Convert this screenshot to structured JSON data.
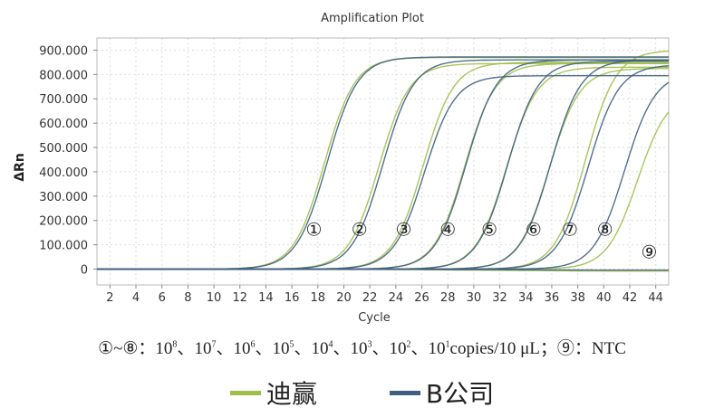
{
  "chart_data": {
    "type": "line",
    "title": "Amplification Plot",
    "xlabel": "Cycle",
    "ylabel": "ΔRn",
    "xlim": [
      1,
      45
    ],
    "ylim": [
      -65000,
      950000
    ],
    "x_ticks": [
      2,
      4,
      6,
      8,
      10,
      12,
      14,
      16,
      18,
      20,
      22,
      24,
      26,
      28,
      30,
      32,
      34,
      36,
      38,
      40,
      42,
      44
    ],
    "y_ticks": [
      0,
      100000,
      200000,
      300000,
      400000,
      500000,
      600000,
      700000,
      800000,
      900000
    ],
    "y_tick_labels": [
      "0",
      "100.000",
      "200.000",
      "300.000",
      "400.000",
      "500.000",
      "600.000",
      "700.000",
      "800.000",
      "900.000"
    ],
    "grid": true,
    "legend_placement": "bottom",
    "series": [
      {
        "name": "迪赢",
        "color": "#9fbf4a",
        "curves": [
          {
            "label": "①",
            "ct": 18.5,
            "plateau": 870000
          },
          {
            "label": "②",
            "ct": 22.7,
            "plateau": 845000
          },
          {
            "label": "③",
            "ct": 26.1,
            "plateau": 850000
          },
          {
            "label": "④",
            "ct": 29.3,
            "plateau": 845000
          },
          {
            "label": "⑤",
            "ct": 32.5,
            "plateau": 830000
          },
          {
            "label": "⑥",
            "ct": 35.8,
            "plateau": 825000
          },
          {
            "label": "⑦",
            "ct": 38.6,
            "plateau": 900000
          },
          {
            "label": "⑧",
            "ct": 42.6,
            "plateau": 730000
          },
          {
            "label": "⑨",
            "ct": null,
            "plateau": -8000
          }
        ]
      },
      {
        "name": "B公司",
        "color": "#3f5f82",
        "curves": [
          {
            "label": "①",
            "ct": 18.7,
            "plateau": 872000
          },
          {
            "label": "②",
            "ct": 23.0,
            "plateau": 860000
          },
          {
            "label": "③",
            "ct": 26.2,
            "plateau": 795000
          },
          {
            "label": "④",
            "ct": 29.4,
            "plateau": 860000
          },
          {
            "label": "⑤",
            "ct": 32.6,
            "plateau": 855000
          },
          {
            "label": "⑥",
            "ct": 35.9,
            "plateau": 860000
          },
          {
            "label": "⑦",
            "ct": 38.8,
            "plateau": 840000
          },
          {
            "label": "⑧",
            "ct": 41.6,
            "plateau": 810000
          },
          {
            "label": "⑨",
            "ct": null,
            "plateau": -4000
          }
        ]
      }
    ],
    "annotations": [
      {
        "text": "①",
        "x": 17.7,
        "y": 163000
      },
      {
        "text": "②",
        "x": 21.2,
        "y": 163000
      },
      {
        "text": "③",
        "x": 24.6,
        "y": 163000
      },
      {
        "text": "④",
        "x": 28.0,
        "y": 163000
      },
      {
        "text": "⑤",
        "x": 31.2,
        "y": 163000
      },
      {
        "text": "⑥",
        "x": 34.6,
        "y": 163000
      },
      {
        "text": "⑦",
        "x": 37.4,
        "y": 163000
      },
      {
        "text": "⑧",
        "x": 40.1,
        "y": 163000
      },
      {
        "text": "⑨",
        "x": 43.5,
        "y": 70000
      }
    ]
  },
  "caption": {
    "prefix": "①~⑧：",
    "base": "10",
    "exponents": [
      "8",
      "7",
      "6",
      "5",
      "4",
      "3",
      "2",
      "1"
    ],
    "separator": "、",
    "unit": "copies/10 μL；",
    "ntc_label": "⑨：NTC"
  },
  "legend": [
    {
      "name": "迪赢",
      "color": "#9fbf4a"
    },
    {
      "name": "B公司",
      "color": "#3f5f82"
    }
  ]
}
